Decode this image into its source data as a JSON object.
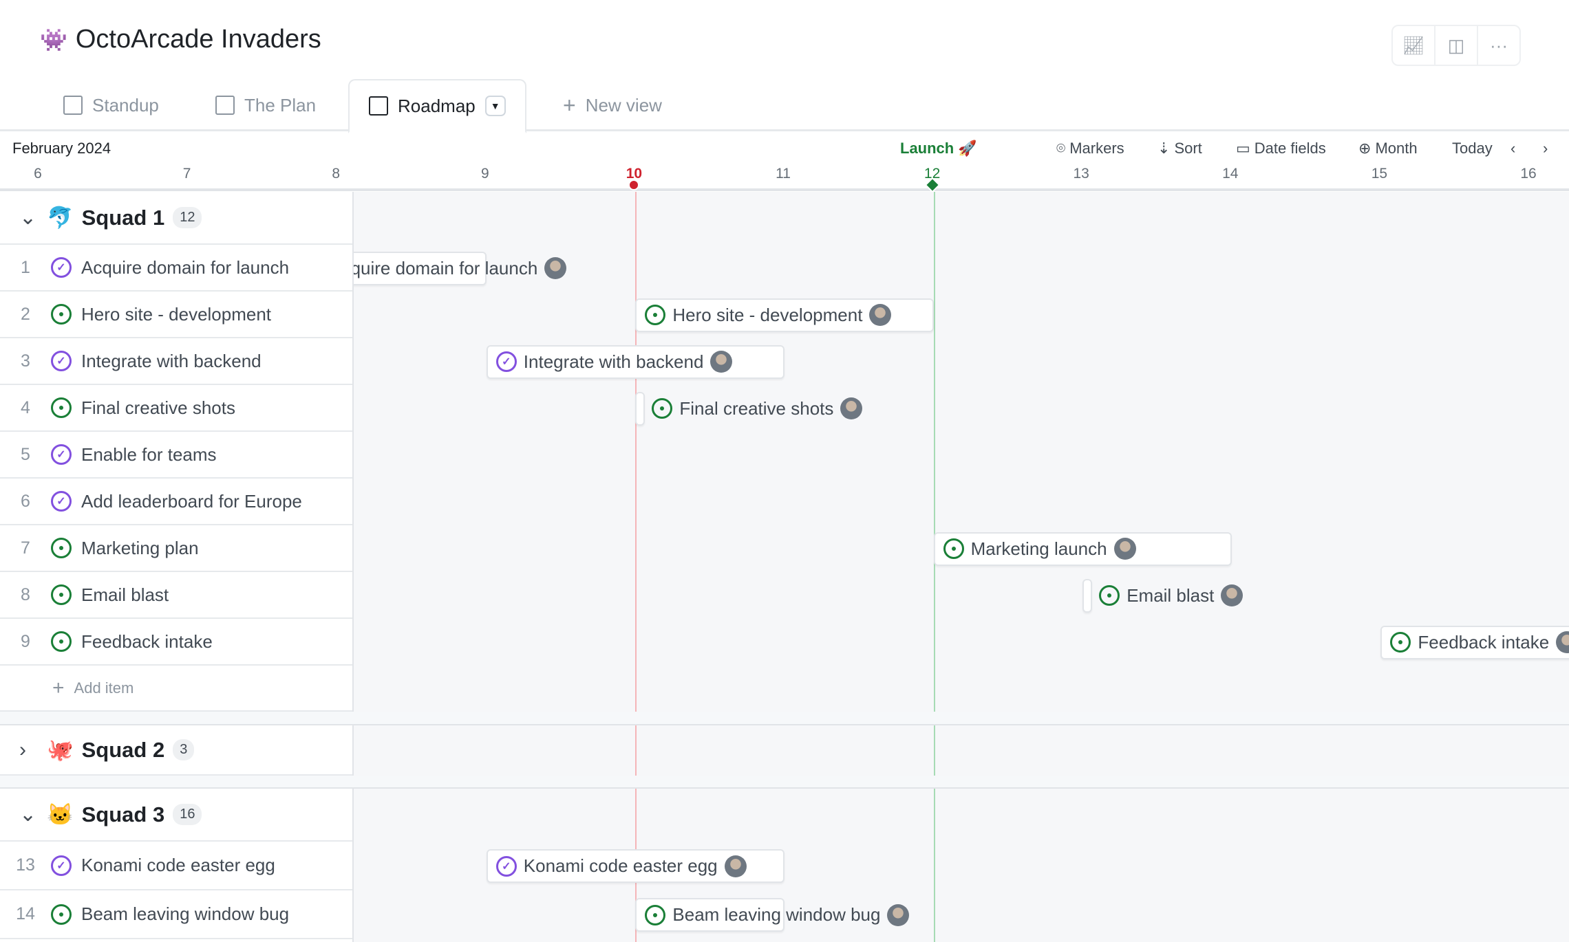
{
  "header": {
    "logo_icon": "space-invader-icon",
    "title": "OctoArcade Invaders",
    "tools": [
      "insights-icon",
      "side-panel-icon",
      "more-icon"
    ]
  },
  "tabs": [
    {
      "label": "Standup",
      "icon": "board-icon"
    },
    {
      "label": "The Plan",
      "icon": "table-icon"
    },
    {
      "label": "Roadmap",
      "icon": "roadmap-icon",
      "active": true
    },
    {
      "label": "New view",
      "icon": "plus-icon"
    }
  ],
  "toolbar": {
    "month": "February 2024",
    "marker_label": "Launch 🚀",
    "markers": "Markers",
    "sort": "Sort",
    "date_fields": "Date fields",
    "zoom": "Month",
    "today": "Today"
  },
  "days": [
    "6",
    "7",
    "8",
    "9",
    "10",
    "11",
    "12",
    "13",
    "14",
    "15",
    "16"
  ],
  "today_day": "10",
  "marker_day": "12",
  "colors": {
    "today": "#cf222e",
    "marker": "#1a7f37",
    "done": "#8250df",
    "open": "#1a7f37"
  },
  "groups": [
    {
      "name": "Squad 1",
      "emoji": "🐬",
      "count": "12",
      "expanded": true,
      "add_item": "Add item",
      "items": [
        {
          "num": "1",
          "title": "Acquire domain for launch",
          "status": "done",
          "start": 7.7,
          "end": 9
        },
        {
          "num": "2",
          "title": "Hero site - development",
          "status": "open",
          "start": 10,
          "end": 12
        },
        {
          "num": "3",
          "title": "Integrate with backend",
          "status": "done",
          "start": 9,
          "end": 11
        },
        {
          "num": "4",
          "title": "Final creative shots",
          "status": "open",
          "start": 10,
          "end": 10
        },
        {
          "num": "5",
          "title": "Enable for teams",
          "status": "done"
        },
        {
          "num": "6",
          "title": "Add leaderboard for Europe",
          "status": "done"
        },
        {
          "num": "7",
          "title": "Marketing plan",
          "bar_title": "Marketing launch",
          "status": "open",
          "start": 12,
          "end": 14
        },
        {
          "num": "8",
          "title": "Email blast",
          "status": "open",
          "start": 13,
          "end": 13
        },
        {
          "num": "9",
          "title": "Feedback intake",
          "status": "open",
          "start": 15,
          "end": 17
        }
      ]
    },
    {
      "name": "Squad 2",
      "emoji": "🐙",
      "count": "3",
      "expanded": false,
      "items": []
    },
    {
      "name": "Squad 3",
      "emoji": "🐱",
      "count": "16",
      "expanded": true,
      "items": [
        {
          "num": "13",
          "title": "Konami code easter egg",
          "status": "done",
          "start": 9,
          "end": 11
        },
        {
          "num": "14",
          "title": "Beam leaving window bug",
          "status": "open",
          "start": 10,
          "end": 11
        }
      ]
    }
  ]
}
